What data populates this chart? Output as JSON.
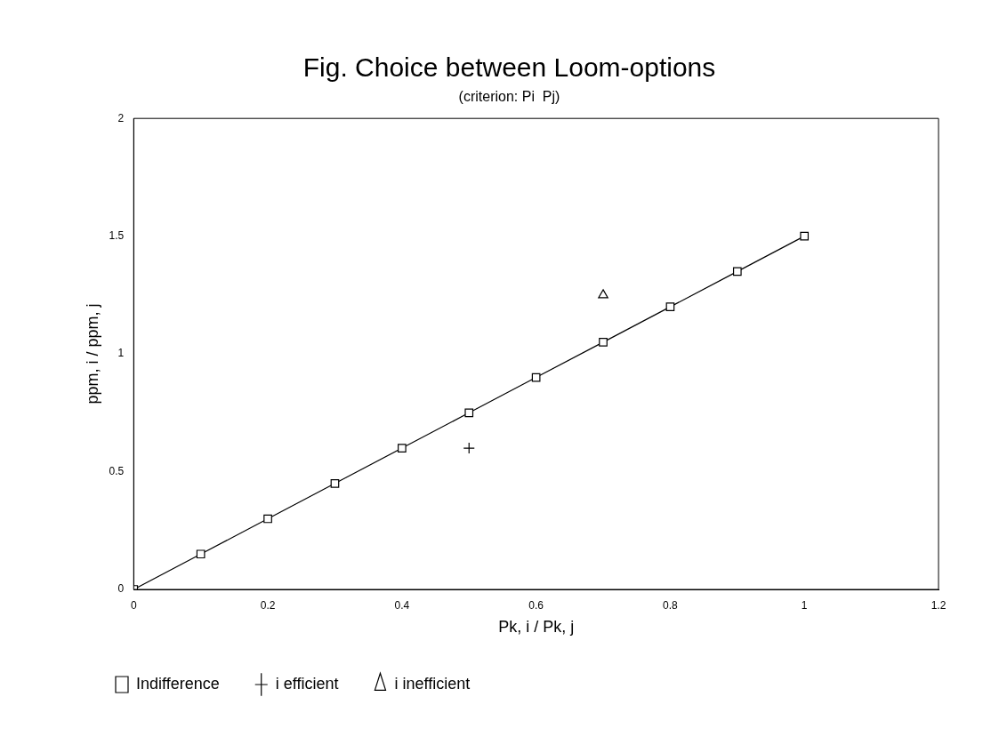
{
  "chart_data": {
    "type": "scatter",
    "title": "Fig. Choice between Loom-options",
    "subtitle": "(criterion: Pi  Pj)",
    "xlabel": "Pk, i / Pk, j",
    "ylabel": "ppm, i / ppm, j",
    "series": [
      {
        "name": "Indifference",
        "type": "line",
        "color": "#000000",
        "marker": "square",
        "x": [
          0,
          0.1,
          0.2,
          0.3,
          0.4,
          0.5,
          0.6,
          0.7,
          0.8,
          0.9,
          1
        ],
        "values": [
          0,
          0.15,
          0.3,
          0.45,
          0.6,
          0.75,
          0.9,
          1.05,
          1.2,
          1.35,
          1.5
        ]
      },
      {
        "name": "i efficient",
        "color": "#000000",
        "marker": "cross",
        "x": [
          0.5
        ],
        "values": [
          0.6
        ]
      },
      {
        "name": "i inefficient",
        "color": "#000000",
        "marker": "triangle",
        "x": [
          0.7
        ],
        "values": [
          1.25
        ]
      }
    ],
    "xlim": [
      0,
      1.2
    ],
    "xticks": [
      0,
      0.2,
      0.4,
      0.6,
      0.8,
      1,
      1.2
    ],
    "ylim": [
      0,
      2
    ],
    "yticks": [
      0,
      0.5,
      1,
      1.5,
      2
    ],
    "grid": false,
    "legend": "bottom"
  }
}
